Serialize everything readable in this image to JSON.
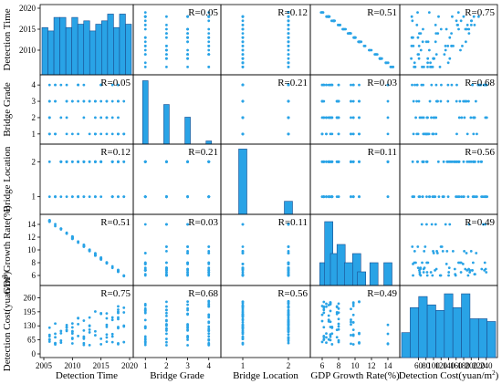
{
  "chart_data": {
    "type": "scatter-matrix",
    "variables": [
      {
        "label": "Detection Time",
        "min": 2005,
        "max": 2020,
        "ticks": [
          2005,
          2010,
          2015,
          2020
        ],
        "display": "continuous"
      },
      {
        "label": "Bridge Grade",
        "min": 0.6,
        "max": 4.4,
        "ticks": [
          1,
          2,
          3,
          4
        ],
        "display": "discrete"
      },
      {
        "label": "Bridge Location",
        "min": 0.6,
        "max": 2.4,
        "ticks": [
          1,
          2
        ],
        "display": "discrete"
      },
      {
        "label": "GDP Growth Rate(%)",
        "min": 5,
        "max": 15,
        "ticks": [
          6,
          8,
          10,
          12,
          14
        ],
        "display": "continuous"
      },
      {
        "label": "Detection Cost(yuan/m²)",
        "label_html": "Detection Cost(yuan/m",
        "label_sup": "2",
        "label_close": ")",
        "min": 20,
        "max": 260,
        "ticks": [
          0,
          65,
          130,
          195,
          260
        ],
        "tick_labels": [
          "0",
          "65",
          "130",
          "195",
          "260"
        ],
        "col_ticks": [
          60,
          80,
          100,
          120,
          140,
          160,
          180,
          200,
          220,
          240
        ],
        "display": "continuous"
      }
    ],
    "y_axis_ticks": {
      "0": [
        2010,
        2015,
        2020
      ],
      "1": [
        1,
        2,
        3,
        4
      ],
      "2": [
        1,
        2
      ],
      "3": [
        6,
        8,
        10,
        12,
        14
      ],
      "4": [
        0,
        65,
        130,
        195,
        260
      ]
    },
    "y_axis_ranges": {
      "0": [
        2005,
        2020
      ],
      "1": [
        0.6,
        4.4
      ],
      "2": [
        0.6,
        2.4
      ],
      "3": [
        5,
        15
      ],
      "4": [
        0,
        300
      ]
    },
    "correlations": [
      [
        null,
        "R=0.05",
        "R=0.12",
        "R=0.51",
        "R=0.75"
      ],
      [
        "R=0.05",
        null,
        "R=0.21",
        "R=0.03",
        "R=0.68"
      ],
      [
        "R=0.12",
        "R=0.21",
        null,
        "R=0.11",
        "R=0.56"
      ],
      [
        "R=0.51",
        "R=0.03",
        "R=0.11",
        null,
        "R=0.49"
      ],
      [
        "R=0.75",
        "R=0.68",
        "R=0.56",
        "R=0.49",
        null
      ]
    ],
    "histograms": [
      {
        "bins": [
          2005.5,
          2006.5,
          2007.5,
          2008.5,
          2009.5,
          2010.5,
          2011.5,
          2012.5,
          2013.5,
          2014.5,
          2015.5,
          2016.5,
          2017.5,
          2018.5,
          2019.5
        ],
        "counts": [
          14,
          13,
          17,
          17,
          14,
          17,
          15,
          16,
          13,
          15,
          16,
          18,
          14,
          18,
          15
        ],
        "max": 20
      },
      {
        "bins": [
          1,
          2,
          3,
          4
        ],
        "counts": [
          40,
          25,
          17,
          2
        ],
        "max": 42
      },
      {
        "bins": [
          1,
          2
        ],
        "counts": [
          60,
          12
        ],
        "max": 62
      },
      {
        "bins": [
          6.2,
          6.8,
          7.5,
          8.3,
          9.2,
          10.2,
          10.8,
          12.3,
          14.0
        ],
        "counts": [
          5,
          14,
          7,
          9,
          5,
          7,
          3,
          5,
          5
        ],
        "max": 15
      },
      {
        "bins": [
          40,
          60,
          80,
          100,
          120,
          140,
          160,
          180,
          200,
          220,
          240
        ],
        "counts": [
          9,
          18,
          22,
          19,
          17,
          23,
          18,
          23,
          14,
          14,
          13
        ],
        "max": 25
      }
    ],
    "colors": {
      "marker": "#29a3e6",
      "bar": "#29a3e6",
      "bar_edge": "#1a4d8f",
      "frame": "#000000"
    },
    "grid": false
  }
}
